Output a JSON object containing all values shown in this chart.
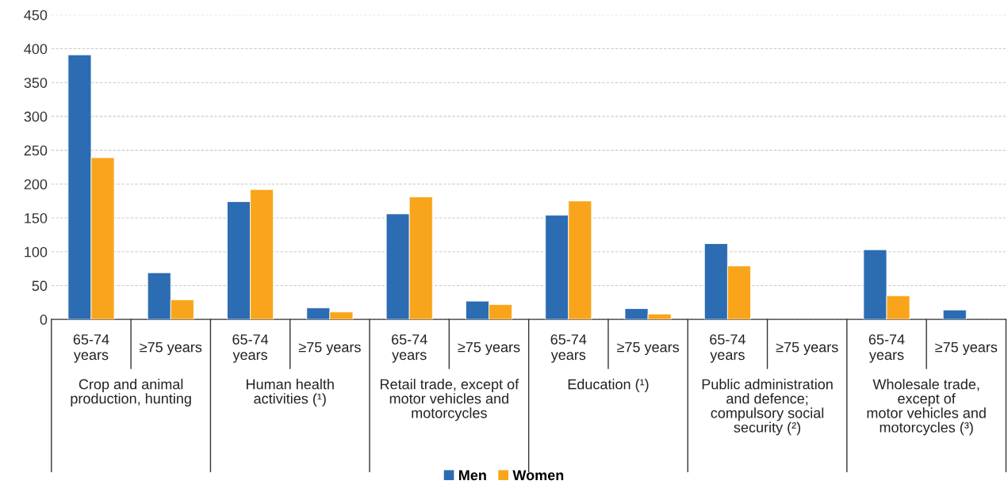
{
  "chart_data": {
    "type": "bar",
    "categories": [
      "65-74\nyears",
      "≥75 years",
      "65-74\nyears",
      "≥75 years",
      "65-74\nyears",
      "≥75 years",
      "65-74\nyears",
      "≥75 years",
      "65-74\nyears",
      "≥75 years",
      "65-74\nyears",
      "≥75 years"
    ],
    "series": [
      {
        "name": "Men",
        "color": "#2b6cb3",
        "values": [
          391,
          69,
          174,
          17,
          156,
          27,
          154,
          16,
          112,
          null,
          103,
          14
        ]
      },
      {
        "name": "Women",
        "color": "#f9a51b",
        "values": [
          239,
          29,
          192,
          11,
          181,
          22,
          175,
          8,
          79,
          null,
          35,
          null
        ]
      }
    ],
    "annotations": [
      "Crop and animal\nproduction, hunting",
      "Human health\nactivities (¹)",
      "Retail trade, except of\nmotor vehicles and\nmotorcycles",
      "Education (¹)",
      "Public administration\nand defence;\ncompulsory social\nsecurity (²)",
      "Wholesale trade,\nexcept of\nmotor vehicles and\nmotorcycles (³)"
    ],
    "ylim": [
      0,
      450
    ],
    "yticks": [
      0,
      50,
      100,
      150,
      200,
      250,
      300,
      350,
      400,
      450
    ],
    "grid": "y",
    "legend": "bottom"
  }
}
